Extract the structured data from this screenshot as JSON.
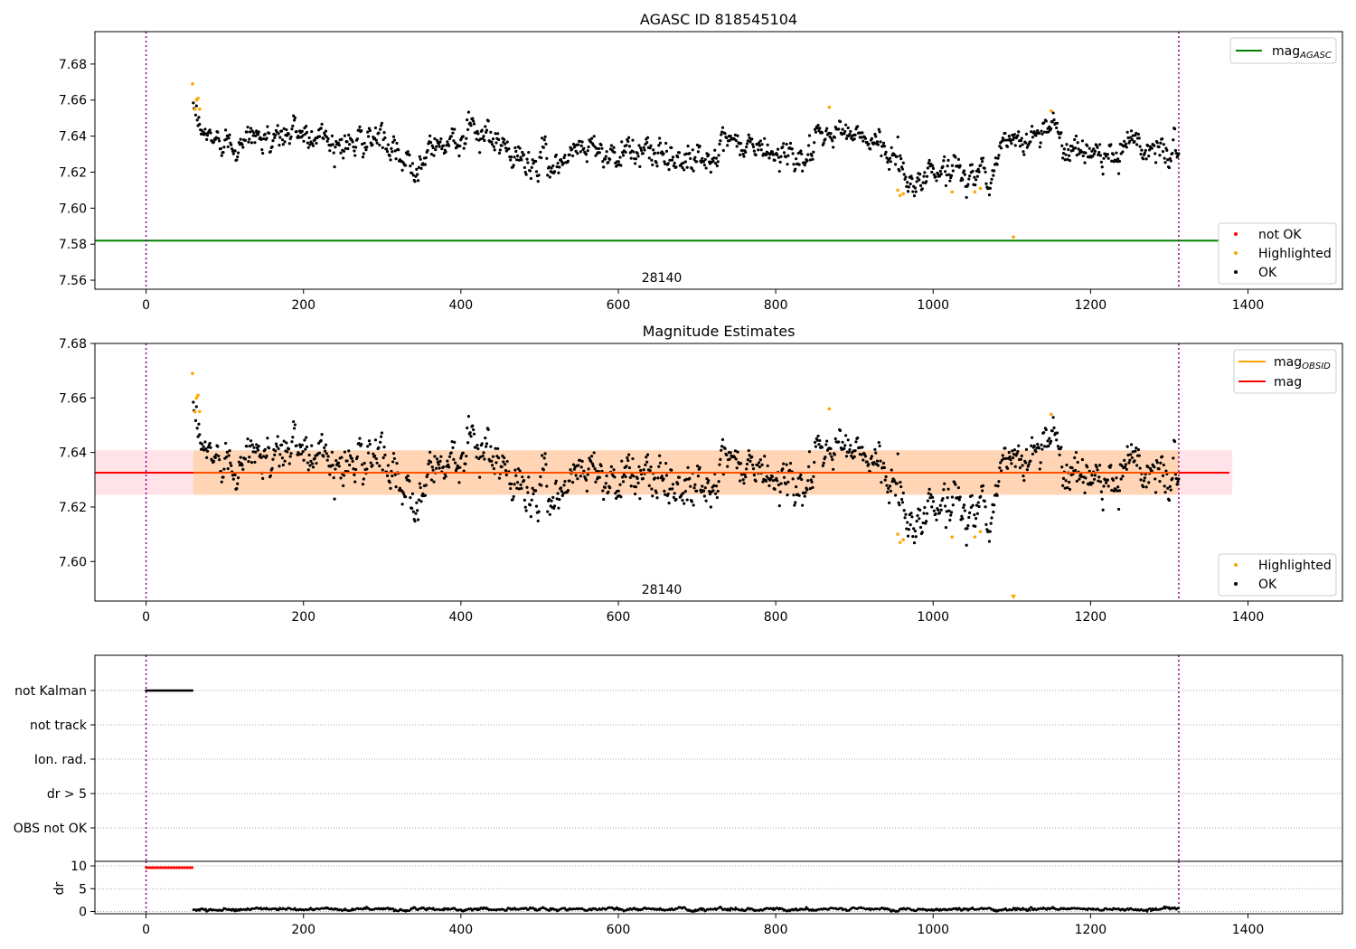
{
  "chart_data": [
    {
      "type": "scatter",
      "title": "AGASC ID 818545104",
      "xlabel": "",
      "ylabel": "",
      "xlim": [
        -65,
        1520
      ],
      "ylim": [
        7.555,
        7.698
      ],
      "xticks": [
        "0",
        "200",
        "400",
        "600",
        "800",
        "1000",
        "1200",
        "1400"
      ],
      "yticks": [
        "7.56",
        "7.58",
        "7.60",
        "7.62",
        "7.64",
        "7.66",
        "7.68"
      ],
      "annotation": "28140",
      "vlines": [
        0,
        1312
      ],
      "hlines": [
        {
          "name": "mag_AGASC",
          "y": 7.582,
          "color": "#008000"
        }
      ],
      "legend_lines": [
        {
          "label": "mag",
          "sub": "AGASC",
          "color": "#008000"
        }
      ],
      "legend_points": [
        {
          "label": "not OK",
          "color": "#ff0000"
        },
        {
          "label": "Highlighted",
          "color": "#ffa500"
        },
        {
          "label": "OK",
          "color": "#000000"
        }
      ],
      "series": [
        {
          "name": "OK",
          "color": "#000000",
          "x_range": [
            60,
            1312
          ],
          "n": 1250,
          "profile_x": [
            60,
            70,
            90,
            150,
            200,
            250,
            300,
            320,
            340,
            400,
            440,
            470,
            520,
            560,
            600,
            650,
            700,
            760,
            800,
            840,
            880,
            920,
            950,
            965,
            1000,
            1050,
            1070,
            1090,
            1100,
            1150,
            1160,
            1200,
            1250,
            1312
          ],
          "profile_y": [
            7.652,
            7.641,
            7.638,
            7.639,
            7.642,
            7.637,
            7.638,
            7.624,
            7.627,
            7.642,
            7.638,
            7.626,
            7.626,
            7.636,
            7.63,
            7.63,
            7.628,
            7.635,
            7.63,
            7.63,
            7.644,
            7.636,
            7.632,
            7.615,
            7.621,
            7.621,
            7.616,
            7.638,
            7.635,
            7.648,
            7.64,
            7.63,
            7.636,
            7.63
          ],
          "scatter": 0.0045
        },
        {
          "name": "Highlighted",
          "color": "#ffa500",
          "x": [
            59,
            62,
            64,
            66,
            68,
            868,
            955,
            958,
            962,
            1024,
            1053,
            1060,
            1102,
            1150
          ],
          "y": [
            7.669,
            7.655,
            7.66,
            7.661,
            7.655,
            7.656,
            7.61,
            7.607,
            7.608,
            7.609,
            7.609,
            7.611,
            7.584,
            7.654
          ]
        }
      ]
    },
    {
      "type": "scatter",
      "title": "Magnitude Estimates",
      "xlabel": "",
      "ylabel": "",
      "xlim": [
        -65,
        1520
      ],
      "ylim": [
        7.5855,
        7.68
      ],
      "xticks": [
        "0",
        "200",
        "400",
        "600",
        "800",
        "1000",
        "1200",
        "1400"
      ],
      "yticks": [
        "7.60",
        "7.62",
        "7.64",
        "7.66",
        "7.68"
      ],
      "annotation": "28140",
      "vlines": [
        0,
        1312
      ],
      "mag": 7.6326,
      "band": {
        "low": 7.6245,
        "high": 7.6408,
        "x_end": 1380
      },
      "legend_lines": [
        {
          "label": "mag",
          "sub": "OBSID",
          "color": "#ffa500"
        },
        {
          "label": "mag",
          "sub": "",
          "color": "#ff0000"
        }
      ],
      "legend_points": [
        {
          "label": "Highlighted",
          "color": "#ffa500"
        },
        {
          "label": "OK",
          "color": "#000000"
        }
      ]
    },
    {
      "type": "scatter",
      "title": "",
      "xlim": [
        -65,
        1520
      ],
      "categories": [
        "not Kalman",
        "not track",
        "Ion. rad.",
        "dr > 5",
        "OBS not OK"
      ],
      "flag_ranges": {
        "not Kalman": [
          0,
          60
        ]
      },
      "vlines": [
        0,
        1312
      ]
    },
    {
      "type": "scatter",
      "title": "",
      "xlabel": "",
      "ylabel": "dr",
      "xlim": [
        -65,
        1520
      ],
      "ylim": [
        -0.5,
        11
      ],
      "yticks": [
        "0",
        "5",
        "10"
      ],
      "xticks": [
        "0",
        "200",
        "400",
        "600",
        "800",
        "1000",
        "1200",
        "1400"
      ],
      "vlines": [
        0,
        1312
      ],
      "series": [
        {
          "name": "dr > 5",
          "color": "#ff0000",
          "x_range": [
            0,
            60
          ],
          "y": 9.6
        },
        {
          "name": "dr",
          "color": "#000000",
          "x_range": [
            60,
            1312
          ],
          "y_mean": 0.5,
          "y_jitter": 0.35
        }
      ]
    }
  ]
}
